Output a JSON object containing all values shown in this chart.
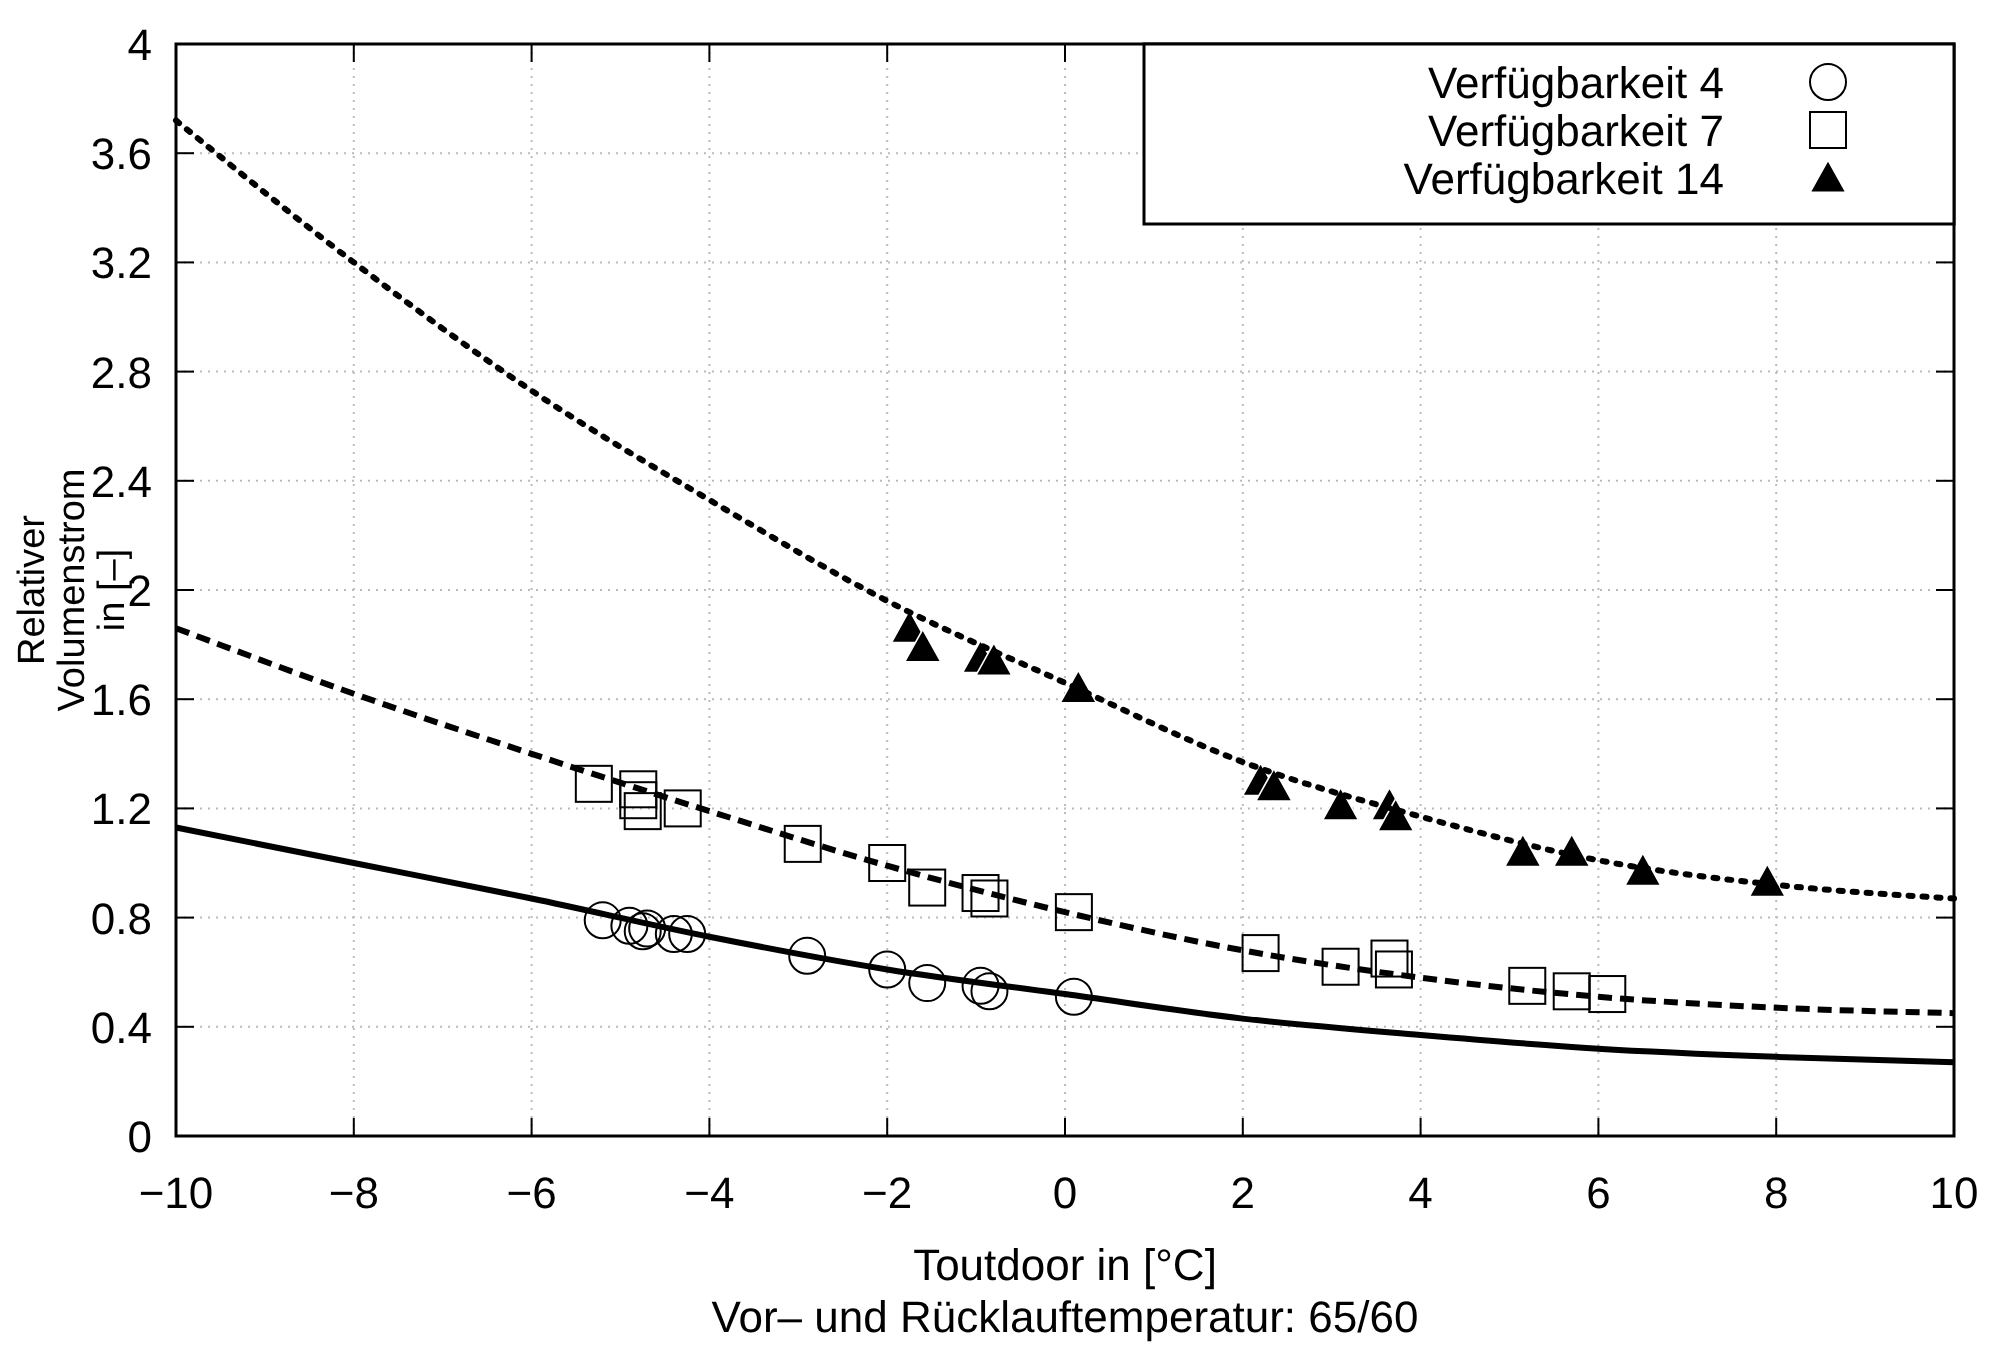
{
  "chart_data": {
    "type": "scatter",
    "xlabel": "Toutdoor in [°C]",
    "ylabel": "Relativer Volumenstrom in [–]",
    "annotations": [
      "Vor– und Rücklauftemperatur: 65/60"
    ],
    "xlim": [
      -10,
      10
    ],
    "ylim": [
      0,
      4
    ],
    "xticks": [
      -10,
      -8,
      -6,
      -4,
      -2,
      0,
      2,
      4,
      6,
      8,
      10
    ],
    "yticks": [
      0,
      0.4,
      0.8,
      1.2,
      1.6,
      2,
      2.4,
      2.8,
      3.2,
      3.6,
      4
    ],
    "grid": true,
    "legend": "top right",
    "series": [
      {
        "name": "Verfügbarkeit 4",
        "marker": "circle",
        "color": "#000000",
        "x": [
          -5.2,
          -4.9,
          -4.75,
          -4.7,
          -4.4,
          -4.25,
          -2.9,
          -2.0,
          -1.55,
          -0.95,
          -0.85,
          0.1
        ],
        "values": [
          0.79,
          0.77,
          0.75,
          0.76,
          0.74,
          0.74,
          0.66,
          0.61,
          0.56,
          0.55,
          0.53,
          0.51
        ]
      },
      {
        "name": "Verfügbarkeit 7",
        "marker": "square",
        "color": "#000000",
        "x": [
          -5.3,
          -4.8,
          -4.8,
          -4.75,
          -4.3,
          -2.95,
          -2.0,
          -1.55,
          -0.95,
          -0.85,
          0.1,
          2.2,
          3.1,
          3.65,
          3.7,
          5.2,
          5.7,
          6.1
        ],
        "values": [
          1.29,
          1.27,
          1.23,
          1.19,
          1.2,
          1.07,
          1.0,
          0.91,
          0.89,
          0.87,
          0.82,
          0.67,
          0.62,
          0.65,
          0.61,
          0.55,
          0.53,
          0.52
        ]
      },
      {
        "name": "Verfügbarkeit 14",
        "marker": "triangle",
        "color": "#000000",
        "x": [
          -1.75,
          -1.6,
          -0.95,
          -0.8,
          0.15,
          2.2,
          2.35,
          3.1,
          3.65,
          3.72,
          5.15,
          5.7,
          6.5,
          7.9
        ],
        "values": [
          1.86,
          1.79,
          1.75,
          1.74,
          1.64,
          1.3,
          1.28,
          1.21,
          1.21,
          1.17,
          1.04,
          1.04,
          0.97,
          0.93
        ]
      },
      {
        "type": "line",
        "line_style": "solid",
        "color": "#000000",
        "x": [
          -10,
          -8,
          -6,
          -4,
          -2,
          0,
          2,
          4,
          6,
          8,
          10
        ],
        "values": [
          1.13,
          1.0,
          0.87,
          0.73,
          0.61,
          0.52,
          0.43,
          0.37,
          0.32,
          0.29,
          0.27
        ]
      },
      {
        "type": "line",
        "line_style": "dashed",
        "color": "#000000",
        "x": [
          -10,
          -8,
          -6,
          -4,
          -2,
          0,
          2,
          4,
          6,
          8,
          10
        ],
        "values": [
          1.86,
          1.62,
          1.4,
          1.19,
          0.99,
          0.82,
          0.68,
          0.58,
          0.51,
          0.47,
          0.45
        ]
      },
      {
        "type": "line",
        "line_style": "dotted",
        "color": "#000000",
        "x": [
          -10,
          -8,
          -6,
          -4,
          -2,
          0,
          2,
          4,
          6,
          8,
          10
        ],
        "values": [
          3.72,
          3.2,
          2.73,
          2.33,
          1.96,
          1.66,
          1.37,
          1.17,
          1.01,
          0.92,
          0.87
        ]
      }
    ]
  }
}
